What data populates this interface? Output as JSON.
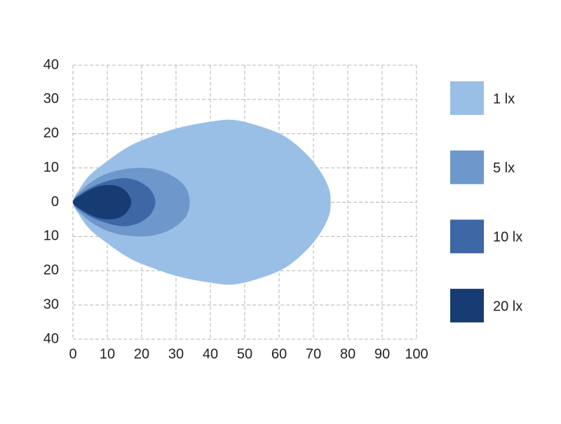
{
  "chart_data": {
    "type": "isolux",
    "xlim": [
      0,
      100
    ],
    "xticks": [
      0,
      10,
      20,
      30,
      40,
      50,
      60,
      70,
      80,
      90,
      100
    ],
    "ylim": [
      -40,
      40
    ],
    "yticks": [
      40,
      30,
      20,
      10,
      0,
      {
        "value": -10,
        "label": "10"
      },
      {
        "value": -20,
        "label": "20"
      },
      {
        "value": -30,
        "label": "30"
      },
      {
        "value": -40,
        "label": "40"
      }
    ],
    "grid": true,
    "legend": "right",
    "series": [
      {
        "name": "1 lx",
        "color": "#99bfe6",
        "x": [
          0,
          2,
          5,
          10,
          15,
          20,
          30,
          40,
          47,
          55,
          62,
          68,
          72,
          74.5,
          75,
          74.5,
          72,
          68,
          62,
          55,
          47,
          40,
          30,
          20,
          15,
          10,
          5,
          2
        ],
        "values": [
          0,
          4,
          8,
          12,
          15.5,
          18,
          21.5,
          23.5,
          24,
          22,
          19,
          14,
          9,
          4,
          0,
          -4,
          -9,
          -14,
          -19,
          -22,
          -24,
          -23.5,
          -21.5,
          -18,
          -15.5,
          -12,
          -8,
          -4
        ]
      },
      {
        "name": "5 lx",
        "color": "#6e98cc",
        "x": [
          0,
          3,
          8,
          14,
          21,
          26,
          30,
          33,
          34,
          33,
          30,
          26,
          21,
          14,
          8,
          3
        ],
        "values": [
          0,
          4,
          7.5,
          9.5,
          10,
          9,
          7,
          4,
          0,
          -4,
          -7,
          -9,
          -10,
          -9.5,
          -7.5,
          -4
        ]
      },
      {
        "name": "10 lx",
        "color": "#3d67a5",
        "x": [
          0,
          3,
          8,
          14,
          18,
          21,
          23,
          24,
          23,
          21,
          18,
          14,
          8,
          3
        ],
        "values": [
          0,
          3,
          5.5,
          7,
          6.5,
          5,
          3,
          0,
          -3,
          -5,
          -6.5,
          -7,
          -5.5,
          -3
        ]
      },
      {
        "name": "20 lx",
        "color": "#173c73",
        "x": [
          0,
          3,
          7,
          11,
          14,
          16,
          17,
          16,
          14,
          11,
          7,
          3
        ],
        "values": [
          0,
          2.5,
          4.5,
          5,
          4.3,
          2.5,
          0,
          -2.5,
          -4.3,
          -5,
          -4.5,
          -2.5
        ]
      }
    ]
  }
}
